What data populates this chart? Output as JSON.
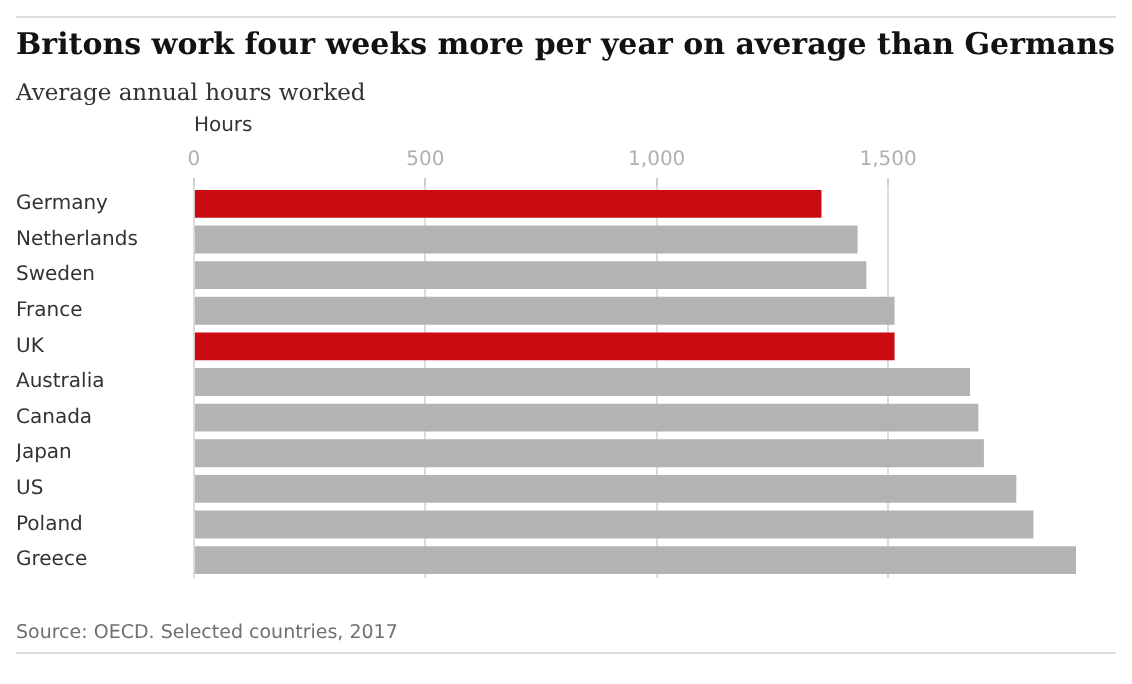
{
  "chart_data": {
    "type": "bar",
    "orientation": "horizontal",
    "title": "Britons work four weeks more per year on average than Germans",
    "subtitle": "Average annual hours worked",
    "xlabel": "Hours",
    "categories": [
      "Germany",
      "Netherlands",
      "Sweden",
      "France",
      "UK",
      "Australia",
      "Canada",
      "Japan",
      "US",
      "Poland",
      "Greece"
    ],
    "values": [
      1356,
      1434,
      1453,
      1514,
      1514,
      1677,
      1695,
      1707,
      1777,
      1814,
      1906
    ],
    "colors": [
      "#cc0a11",
      "#b3b3b3",
      "#b3b3b3",
      "#b3b3b3",
      "#cc0a11",
      "#b3b3b3",
      "#b3b3b3",
      "#b3b3b3",
      "#b3b3b3",
      "#b3b3b3",
      "#b3b3b3"
    ],
    "xlim": [
      0,
      1906
    ],
    "xticks": [
      0,
      500,
      {
        "value": 1000,
        "label": "1,000"
      },
      {
        "value": 1500,
        "label": "1,500"
      }
    ],
    "grid": "x",
    "annotations": [
      "Source: OECD. Selected countries, 2017"
    ]
  }
}
